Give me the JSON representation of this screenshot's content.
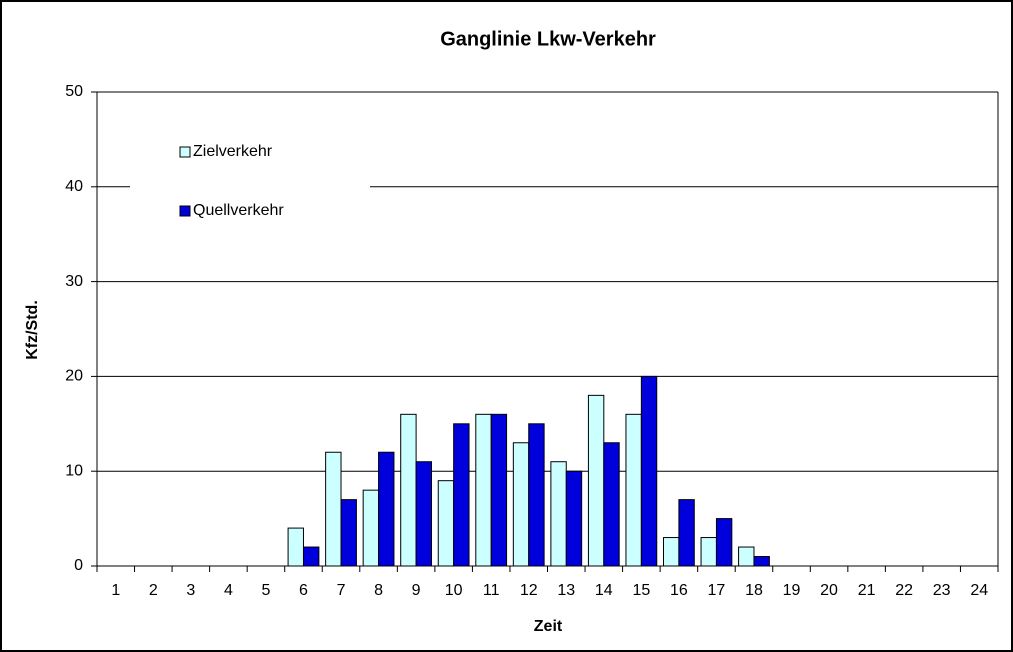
{
  "chart_data": {
    "type": "bar",
    "title": "Ganglinie Lkw-Verkehr",
    "x_label": "Zeit",
    "y_label": "Kfz/Std.",
    "categories": [
      "1",
      "2",
      "3",
      "4",
      "5",
      "6",
      "7",
      "8",
      "9",
      "10",
      "11",
      "12",
      "13",
      "14",
      "15",
      "16",
      "17",
      "18",
      "19",
      "20",
      "21",
      "22",
      "23",
      "24"
    ],
    "series": [
      {
        "name": "Zielverkehr",
        "color": "#ccffff",
        "values": [
          0,
          0,
          0,
          0,
          0,
          4,
          12,
          8,
          16,
          9,
          16,
          13,
          11,
          18,
          16,
          3,
          3,
          2,
          0,
          0,
          0,
          0,
          0,
          0
        ]
      },
      {
        "name": "Quellverkehr",
        "color": "#0000dd",
        "values": [
          0,
          0,
          0,
          0,
          0,
          2,
          7,
          12,
          11,
          15,
          16,
          15,
          10,
          13,
          20,
          7,
          5,
          1,
          0,
          0,
          0,
          0,
          0,
          0
        ]
      }
    ],
    "ylim": [
      0,
      50
    ],
    "yticks": [
      0,
      10,
      20,
      30,
      40,
      50
    ],
    "grid": true,
    "legend": "upper left"
  }
}
